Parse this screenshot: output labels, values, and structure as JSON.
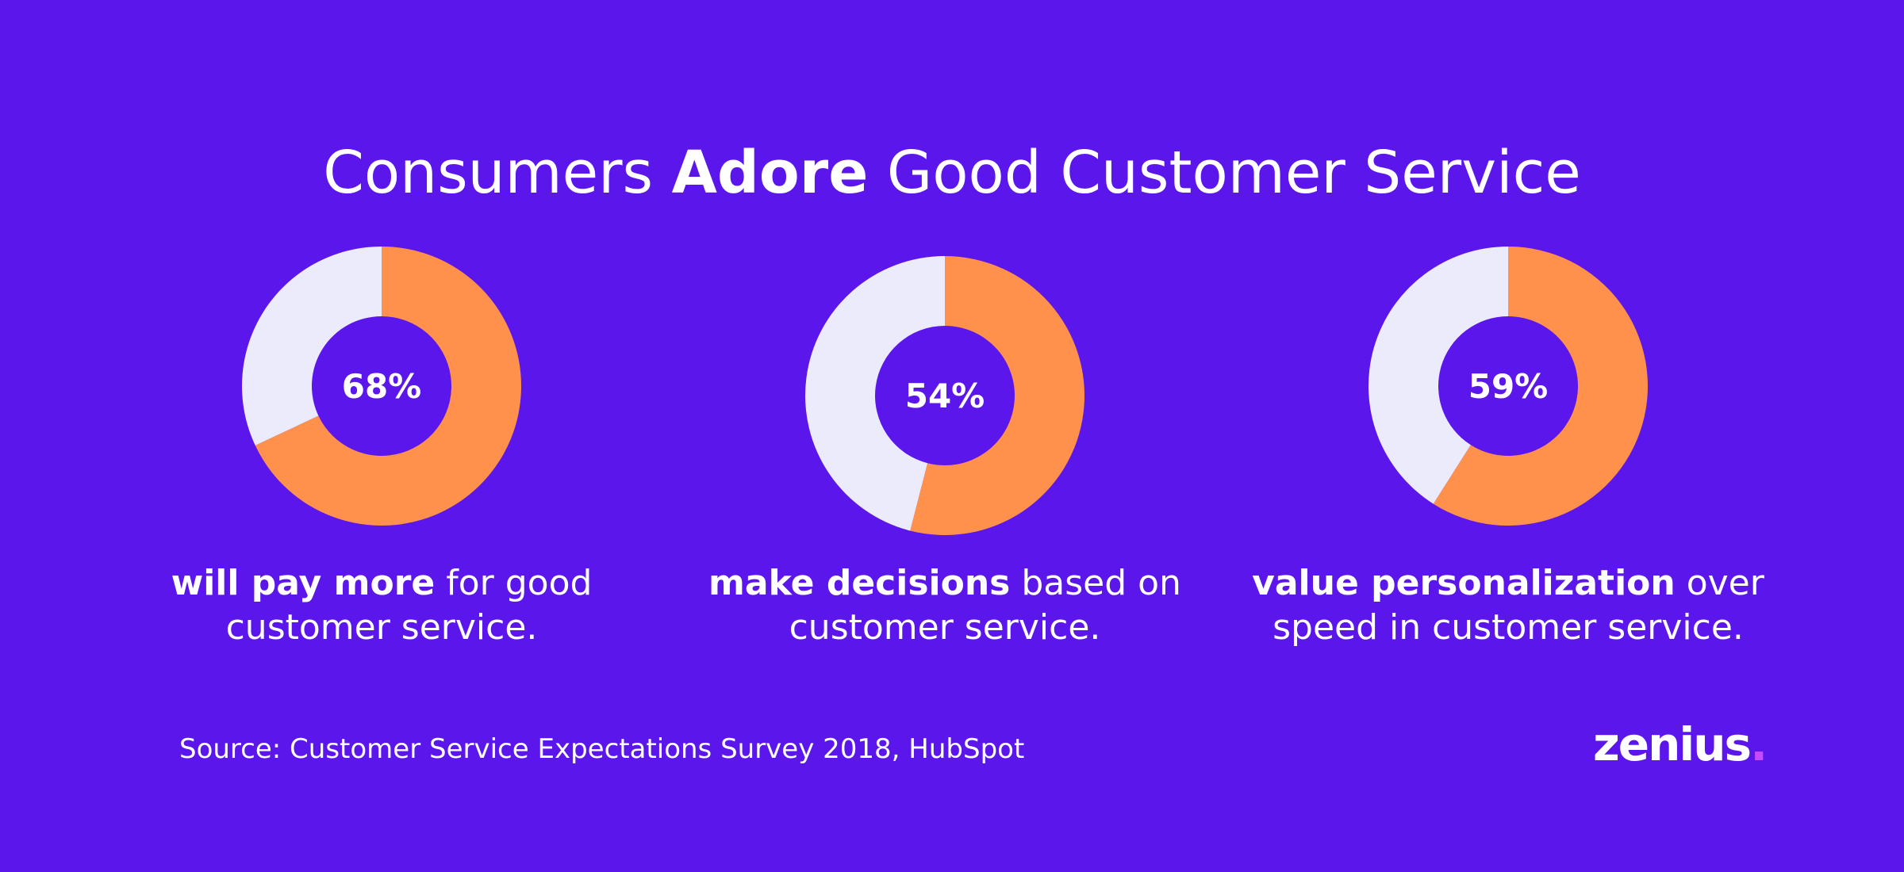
{
  "title": {
    "pre": "Consumers ",
    "bold": "Adore",
    "post": " Good Customer Service"
  },
  "colors": {
    "background": "#5b17eb",
    "filled": "#ff914d",
    "remainder": "#ecebfb",
    "text": "#ffffff",
    "logo_dot": "#c64bff"
  },
  "chart_data": [
    {
      "type": "pie",
      "values": [
        68,
        32
      ],
      "label": "68%",
      "caption_bold": "will pay more",
      "caption_rest": " for good customer service."
    },
    {
      "type": "pie",
      "values": [
        54,
        46
      ],
      "label": "54%",
      "caption_bold": "make decisions",
      "caption_rest": " based on customer service."
    },
    {
      "type": "pie",
      "values": [
        59,
        41
      ],
      "label": "59%",
      "caption_bold": "value personalization",
      "caption_rest": " over speed in customer service."
    }
  ],
  "source": "Source: Customer Service Expectations Survey 2018, HubSpot",
  "logo": {
    "text": "zenius",
    "dot": "."
  }
}
